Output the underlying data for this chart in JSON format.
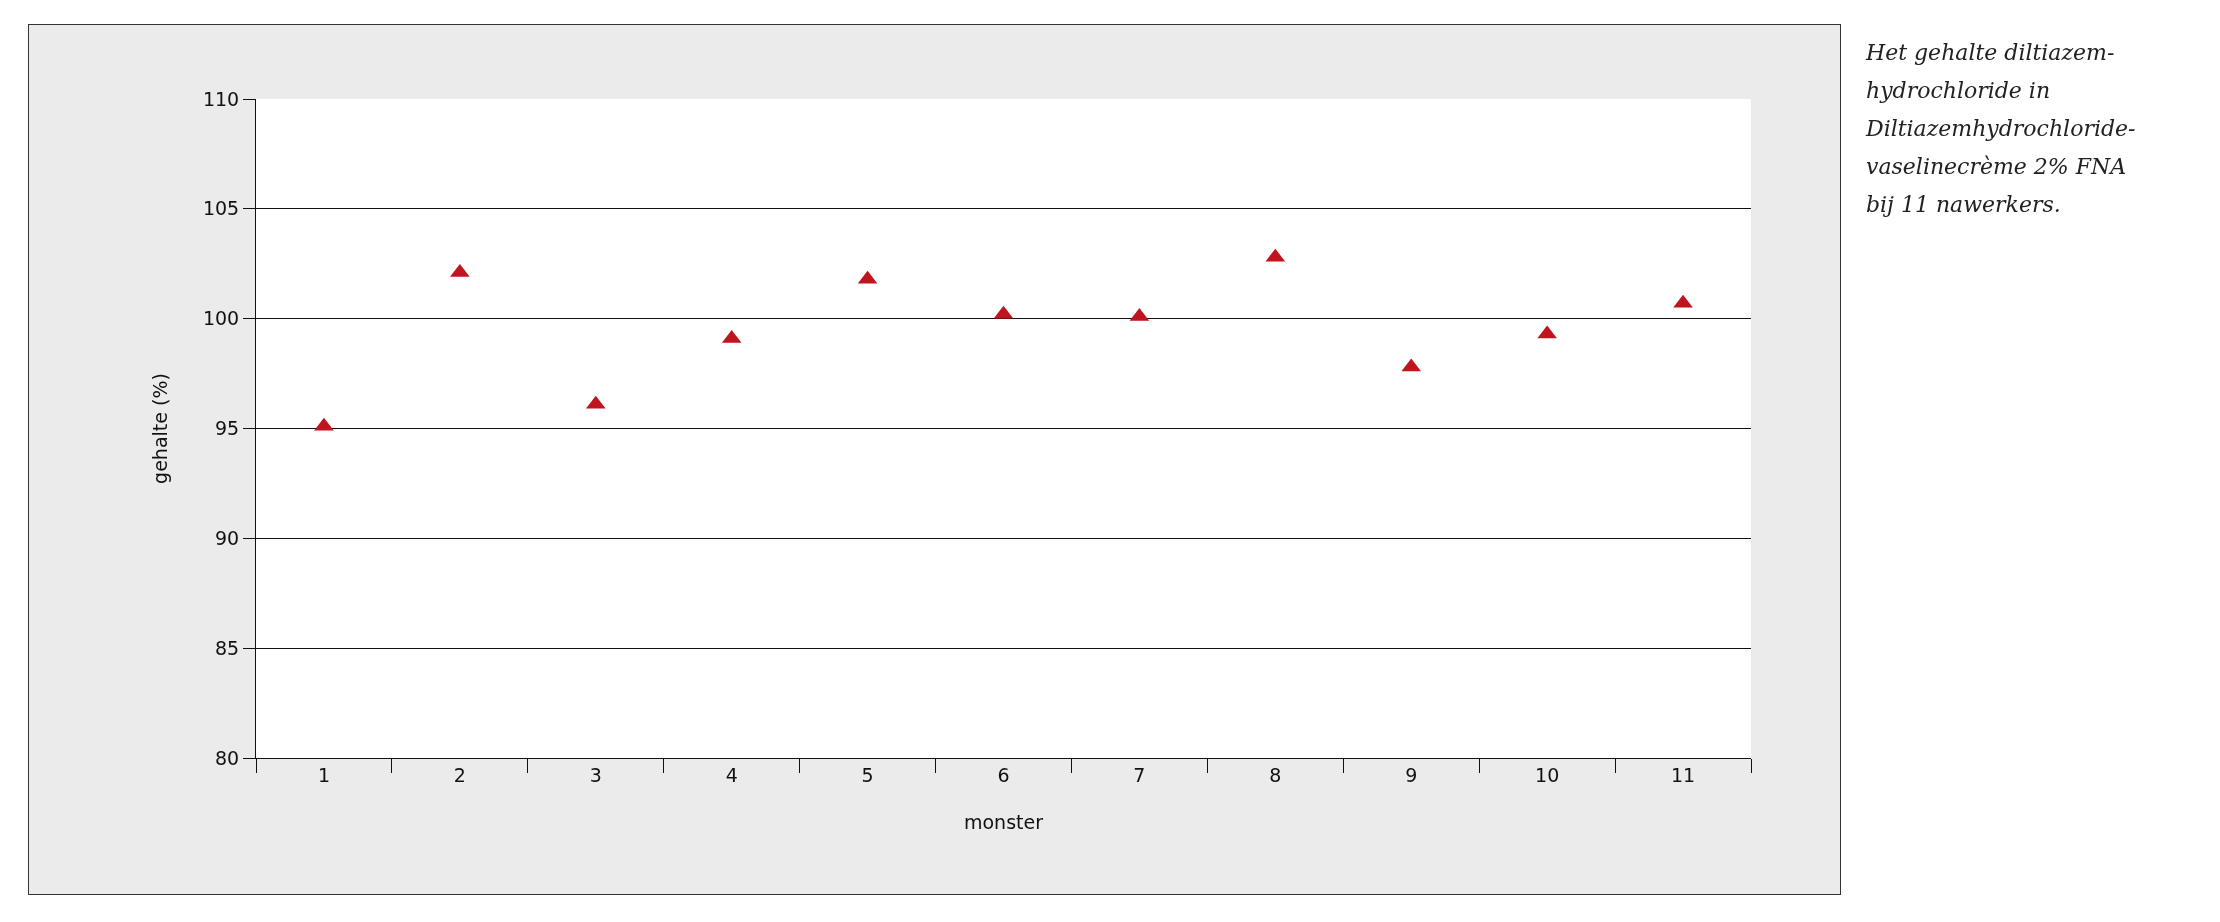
{
  "chart_data": {
    "type": "scatter",
    "xlabel": "monster",
    "ylabel": "gehalte (%)",
    "categories": [
      "1",
      "2",
      "3",
      "4",
      "5",
      "6",
      "7",
      "8",
      "9",
      "10",
      "11"
    ],
    "series": [
      {
        "color": "#c0141e",
        "values": [
          95.1,
          102.1,
          96.1,
          99.1,
          101.8,
          100.2,
          100.1,
          102.8,
          97.8,
          99.3,
          100.7
        ]
      }
    ],
    "ylim": [
      80,
      110
    ],
    "yticks": [
      80,
      85,
      90,
      95,
      100,
      105,
      110
    ],
    "grid": "y",
    "marker": "triangle",
    "annotations": [
      "Het gehalte diltiazem-\nhydrochloride in\nDiltiazemhydrochloride-\nvaselinecrème 2% FNA\nbij 11 nawerkers."
    ]
  }
}
